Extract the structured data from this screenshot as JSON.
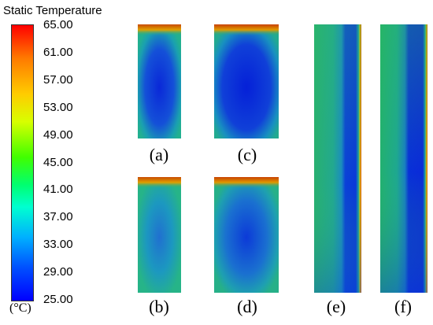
{
  "legend": {
    "title": "Static Temperature",
    "unit": "(°C)",
    "ticks": [
      "65.00",
      "61.00",
      "57.00",
      "53.00",
      "49.00",
      "45.00",
      "41.00",
      "37.00",
      "33.00",
      "29.00",
      "25.00"
    ]
  },
  "panels": {
    "a": "(a)",
    "b": "(b)",
    "c": "(c)",
    "d": "(d)",
    "e": "(e)",
    "f": "(f)"
  }
}
